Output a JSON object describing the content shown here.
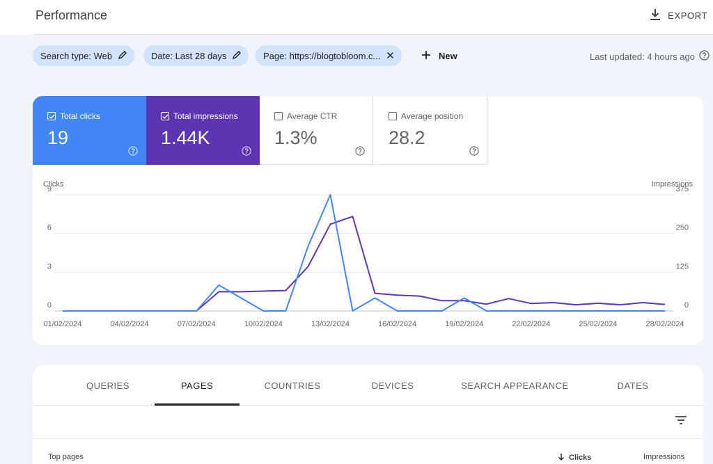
{
  "header": {
    "title": "Performance",
    "export_label": "EXPORT"
  },
  "filters": {
    "chips": [
      {
        "label": "Search type: Web",
        "action": "edit"
      },
      {
        "label": "Date: Last 28 days",
        "action": "edit"
      },
      {
        "label": "Page: https://blogtobloom.c...",
        "action": "remove"
      }
    ],
    "new_label": "New",
    "last_updated": "Last updated: 4 hours ago"
  },
  "metrics": [
    {
      "label": "Total clicks",
      "value": "19",
      "checked": true,
      "color": "#4285f4"
    },
    {
      "label": "Total impressions",
      "value": "1.44K",
      "checked": true,
      "color": "#5e35b1"
    },
    {
      "label": "Average CTR",
      "value": "1.3%",
      "checked": false,
      "color": "#ffffff"
    },
    {
      "label": "Average position",
      "value": "28.2",
      "checked": false,
      "color": "#ffffff"
    }
  ],
  "chart_data": {
    "type": "line",
    "x": [
      "01/02/2024",
      "02/02/2024",
      "03/02/2024",
      "04/02/2024",
      "05/02/2024",
      "06/02/2024",
      "07/02/2024",
      "08/02/2024",
      "09/02/2024",
      "10/02/2024",
      "11/02/2024",
      "12/02/2024",
      "13/02/2024",
      "14/02/2024",
      "15/02/2024",
      "16/02/2024",
      "17/02/2024",
      "18/02/2024",
      "19/02/2024",
      "20/02/2024",
      "21/02/2024",
      "22/02/2024",
      "23/02/2024",
      "24/02/2024",
      "25/02/2024",
      "26/02/2024",
      "27/02/2024",
      "28/02/2024"
    ],
    "x_ticks": [
      "01/02/2024",
      "04/02/2024",
      "07/02/2024",
      "10/02/2024",
      "13/02/2024",
      "16/02/2024",
      "19/02/2024",
      "22/02/2024",
      "25/02/2024",
      "28/02/2024"
    ],
    "series": [
      {
        "name": "Clicks",
        "axis": "left",
        "color": "#4285f4",
        "values": [
          0,
          0,
          0,
          0,
          0,
          0,
          0,
          2,
          1,
          0,
          0,
          5,
          9,
          0,
          1,
          0,
          0,
          0,
          1,
          0,
          0,
          0,
          0,
          0,
          0,
          0,
          0,
          0
        ]
      },
      {
        "name": "Impressions",
        "axis": "right",
        "color": "#5e35b1",
        "values": [
          0,
          0,
          0,
          0,
          0,
          0,
          0,
          62,
          62,
          64,
          66,
          143,
          280,
          305,
          57,
          51,
          48,
          33,
          33,
          22,
          40,
          24,
          27,
          20,
          25,
          20,
          27,
          21
        ]
      }
    ],
    "left_axis": {
      "label": "Clicks",
      "ticks": [
        "0",
        "3",
        "6",
        "9"
      ],
      "ylim": [
        0,
        9
      ]
    },
    "right_axis": {
      "label": "Impressions",
      "ticks": [
        "0",
        "125",
        "250",
        "375"
      ],
      "ylim": [
        0,
        375
      ]
    },
    "grid": true,
    "legend": "none"
  },
  "tabs": [
    {
      "label": "QUERIES",
      "active": false
    },
    {
      "label": "PAGES",
      "active": true
    },
    {
      "label": "COUNTRIES",
      "active": false
    },
    {
      "label": "DEVICES",
      "active": false
    },
    {
      "label": "SEARCH APPEARANCE",
      "active": false
    },
    {
      "label": "DATES",
      "active": false
    }
  ],
  "table": {
    "headers": {
      "primary": "Top pages",
      "clicks": "Clicks",
      "impressions": "Impressions"
    }
  }
}
